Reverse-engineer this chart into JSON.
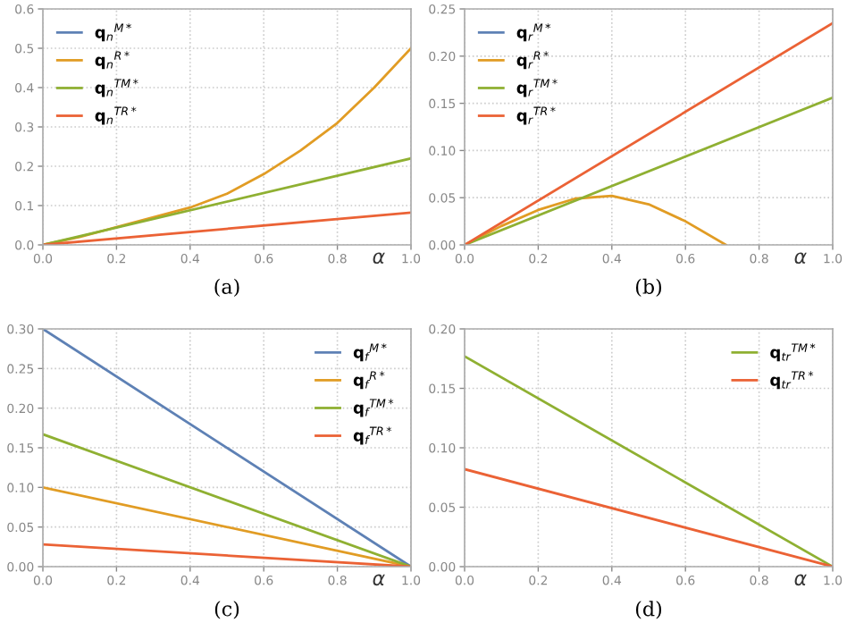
{
  "chart_data": [
    {
      "type": "line",
      "title": "(a)",
      "xlabel": "α",
      "xlim": [
        0,
        1
      ],
      "ylim": [
        0,
        0.6
      ],
      "grid": true,
      "legend": "top left",
      "xticks": [
        {
          "value": 0,
          "label": "0.0"
        },
        {
          "value": 0.2,
          "label": "0.2"
        },
        {
          "value": 0.4,
          "label": "0.4"
        },
        {
          "value": 0.6,
          "label": "0.6"
        },
        {
          "value": 0.8,
          "label": "0.8"
        },
        {
          "value": 1,
          "label": "1.0"
        }
      ],
      "yticks": [
        {
          "value": 0,
          "label": "0.0"
        },
        {
          "value": 0.1,
          "label": "0.1"
        },
        {
          "value": 0.2,
          "label": "0.2"
        },
        {
          "value": 0.3,
          "label": "0.3"
        },
        {
          "value": 0.4,
          "label": "0.4"
        },
        {
          "value": 0.5,
          "label": "0.5"
        },
        {
          "value": 0.6,
          "label": "0.6"
        }
      ],
      "series": [
        {
          "name": "q$_{n}$$^{M*}$",
          "color": "#5e81b5"
        },
        {
          "name": "q$_{n}$$^{R*}$",
          "color": "#e19c24",
          "x": [
            0,
            0.1,
            0.2,
            0.3,
            0.4,
            0.5,
            0.6,
            0.7,
            0.8,
            0.9,
            1
          ],
          "values": [
            0,
            0.02,
            0.045,
            0.07,
            0.095,
            0.13,
            0.18,
            0.24,
            0.31,
            0.4,
            0.5
          ]
        },
        {
          "name": "q$_{n}$$^{TM*}$",
          "color": "#8fb032",
          "x": [
            0,
            1
          ],
          "values": [
            0,
            0.22
          ]
        },
        {
          "name": "q$_{n}$$^{TR*}$",
          "color": "#eb6235",
          "x": [
            0,
            1
          ],
          "values": [
            0,
            0.082
          ]
        }
      ]
    },
    {
      "type": "line",
      "title": "(b)",
      "xlabel": "α",
      "xlim": [
        0,
        1
      ],
      "ylim": [
        0,
        0.25
      ],
      "grid": true,
      "legend": "top left",
      "xticks": [
        {
          "value": 0,
          "label": "0.0"
        },
        {
          "value": 0.2,
          "label": "0.2"
        },
        {
          "value": 0.4,
          "label": "0.4"
        },
        {
          "value": 0.6,
          "label": "0.6"
        },
        {
          "value": 0.8,
          "label": "0.8"
        },
        {
          "value": 1,
          "label": "1.0"
        }
      ],
      "yticks": [
        {
          "value": 0,
          "label": "0.00"
        },
        {
          "value": 0.05,
          "label": "0.05"
        },
        {
          "value": 0.1,
          "label": "0.10"
        },
        {
          "value": 0.15,
          "label": "0.15"
        },
        {
          "value": 0.2,
          "label": "0.20"
        },
        {
          "value": 0.25,
          "label": "0.25"
        }
      ],
      "series": [
        {
          "name": "q$_{r}$$^{M*}$",
          "color": "#5e81b5"
        },
        {
          "name": "q$_{r}$$^{R*}$",
          "color": "#e19c24",
          "x": [
            0,
            0.1,
            0.2,
            0.3,
            0.4,
            0.5,
            0.6,
            0.71
          ],
          "values": [
            0,
            0.02,
            0.037,
            0.049,
            0.052,
            0.043,
            0.025,
            0
          ]
        },
        {
          "name": "q$_{r}$$^{TM*}$",
          "color": "#8fb032",
          "x": [
            0,
            1
          ],
          "values": [
            0,
            0.156
          ]
        },
        {
          "name": "q$_{r}$$^{TR*}$",
          "color": "#eb6235",
          "x": [
            0,
            1
          ],
          "values": [
            0,
            0.235
          ]
        }
      ]
    },
    {
      "type": "line",
      "title": "(c)",
      "xlabel": "α",
      "xlim": [
        0,
        1
      ],
      "ylim": [
        0,
        0.3
      ],
      "grid": true,
      "legend": "top right",
      "xticks": [
        {
          "value": 0,
          "label": "0.0"
        },
        {
          "value": 0.2,
          "label": "0.2"
        },
        {
          "value": 0.4,
          "label": "0.4"
        },
        {
          "value": 0.6,
          "label": "0.6"
        },
        {
          "value": 0.8,
          "label": "0.8"
        },
        {
          "value": 1,
          "label": "1.0"
        }
      ],
      "yticks": [
        {
          "value": 0,
          "label": "0.00"
        },
        {
          "value": 0.05,
          "label": "0.05"
        },
        {
          "value": 0.1,
          "label": "0.10"
        },
        {
          "value": 0.15,
          "label": "0.15"
        },
        {
          "value": 0.2,
          "label": "0.20"
        },
        {
          "value": 0.25,
          "label": "0.25"
        },
        {
          "value": 0.3,
          "label": "0.30"
        }
      ],
      "series": [
        {
          "name": "q$_{f}$$^{M*}$",
          "color": "#5e81b5",
          "x": [
            0,
            1
          ],
          "values": [
            0.3,
            0
          ]
        },
        {
          "name": "q$_{f}$$^{R*}$",
          "color": "#e19c24",
          "x": [
            0,
            1
          ],
          "values": [
            0.1,
            0
          ]
        },
        {
          "name": "q$_{f}$$^{TM*}$",
          "color": "#8fb032",
          "x": [
            0,
            1
          ],
          "values": [
            0.167,
            0
          ]
        },
        {
          "name": "q$_{f}$$^{TR*}$",
          "color": "#eb6235",
          "x": [
            0,
            1
          ],
          "values": [
            0.028,
            0
          ]
        }
      ]
    },
    {
      "type": "line",
      "title": "(d)",
      "xlabel": "α",
      "xlim": [
        0,
        1
      ],
      "ylim": [
        0,
        0.2
      ],
      "grid": true,
      "legend": "top right",
      "xticks": [
        {
          "value": 0,
          "label": "0.0"
        },
        {
          "value": 0.2,
          "label": "0.2"
        },
        {
          "value": 0.4,
          "label": "0.4"
        },
        {
          "value": 0.6,
          "label": "0.6"
        },
        {
          "value": 0.8,
          "label": "0.8"
        },
        {
          "value": 1,
          "label": "1.0"
        }
      ],
      "yticks": [
        {
          "value": 0,
          "label": "0.00"
        },
        {
          "value": 0.05,
          "label": "0.05"
        },
        {
          "value": 0.1,
          "label": "0.10"
        },
        {
          "value": 0.15,
          "label": "0.15"
        },
        {
          "value": 0.2,
          "label": "0.20"
        }
      ],
      "series": [
        {
          "name": "q$_{tr}$$^{TM*}$",
          "color": "#8fb032",
          "x": [
            0,
            1
          ],
          "values": [
            0.177,
            0
          ]
        },
        {
          "name": "q$_{tr}$$^{TR*}$",
          "color": "#eb6235",
          "x": [
            0,
            1
          ],
          "values": [
            0.082,
            0
          ]
        }
      ]
    }
  ]
}
